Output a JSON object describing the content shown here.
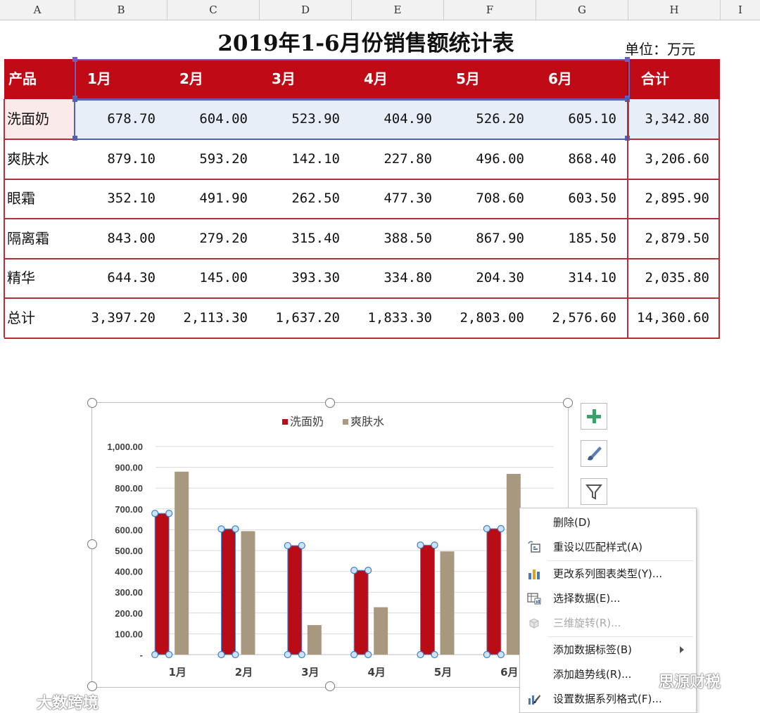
{
  "columns": [
    "A",
    "B",
    "C",
    "D",
    "E",
    "F",
    "G",
    "H",
    "I"
  ],
  "title": "2019年1-6月份销售额统计表",
  "unit": "单位：万元",
  "table": {
    "header": [
      "产品",
      "1月",
      "2月",
      "3月",
      "4月",
      "5月",
      "6月",
      "合计"
    ],
    "rows": [
      [
        "洗面奶",
        "678.70",
        "604.00",
        "523.90",
        "404.90",
        "526.20",
        "605.10",
        "3,342.80"
      ],
      [
        "爽肤水",
        "879.10",
        "593.20",
        "142.10",
        "227.80",
        "496.00",
        "868.40",
        "3,206.60"
      ],
      [
        "眼霜",
        "352.10",
        "491.90",
        "262.50",
        "477.30",
        "708.60",
        "603.50",
        "2,895.90"
      ],
      [
        "隔离霜",
        "843.00",
        "279.20",
        "315.40",
        "388.50",
        "867.90",
        "185.50",
        "2,879.50"
      ],
      [
        "精华",
        "644.30",
        "145.00",
        "393.30",
        "334.80",
        "204.30",
        "314.10",
        "2,035.80"
      ],
      [
        "总计",
        "3,397.20",
        "2,113.30",
        "1,637.20",
        "1,833.30",
        "2,803.00",
        "2,576.60",
        "14,360.60"
      ]
    ]
  },
  "chart_data": {
    "type": "bar",
    "categories": [
      "1月",
      "2月",
      "3月",
      "4月",
      "5月",
      "6月"
    ],
    "series": [
      {
        "name": "洗面奶",
        "values": [
          678.7,
          604.0,
          523.9,
          404.9,
          526.2,
          605.1
        ],
        "color": "#b80c17"
      },
      {
        "name": "爽肤水",
        "values": [
          879.1,
          593.2,
          142.1,
          227.8,
          496.0,
          868.4
        ],
        "color": "#a89880"
      }
    ],
    "yticks": [
      "-",
      "100.00",
      "200.00",
      "300.00",
      "400.00",
      "500.00",
      "600.00",
      "700.00",
      "800.00",
      "900.00",
      "1,000.00"
    ],
    "ylim": [
      0,
      1000
    ],
    "legend": "top",
    "grid": true,
    "title": "",
    "xlabel": "",
    "ylabel": ""
  },
  "side_buttons": [
    "plus-icon",
    "brush-icon",
    "filter-icon"
  ],
  "context_menu": [
    {
      "label": "删除(D)",
      "icon": "",
      "disabled": false
    },
    {
      "label": "重设以匹配样式(A)",
      "icon": "reset-style-icon",
      "disabled": false
    },
    {
      "label": "更改系列图表类型(Y)...",
      "icon": "chart-type-icon",
      "disabled": false
    },
    {
      "label": "选择数据(E)...",
      "icon": "select-data-icon",
      "disabled": false
    },
    {
      "label": "三维旋转(R)...",
      "icon": "3d-rotate-icon",
      "disabled": true
    },
    {
      "label": "添加数据标签(B)",
      "icon": "",
      "disabled": false,
      "submenu": true
    },
    {
      "label": "添加趋势线(R)...",
      "icon": "",
      "disabled": false
    },
    {
      "label": "设置数据系列格式(F)...",
      "icon": "format-series-icon",
      "disabled": false
    }
  ],
  "watermarks": [
    "大数跨境",
    "思源财税"
  ]
}
